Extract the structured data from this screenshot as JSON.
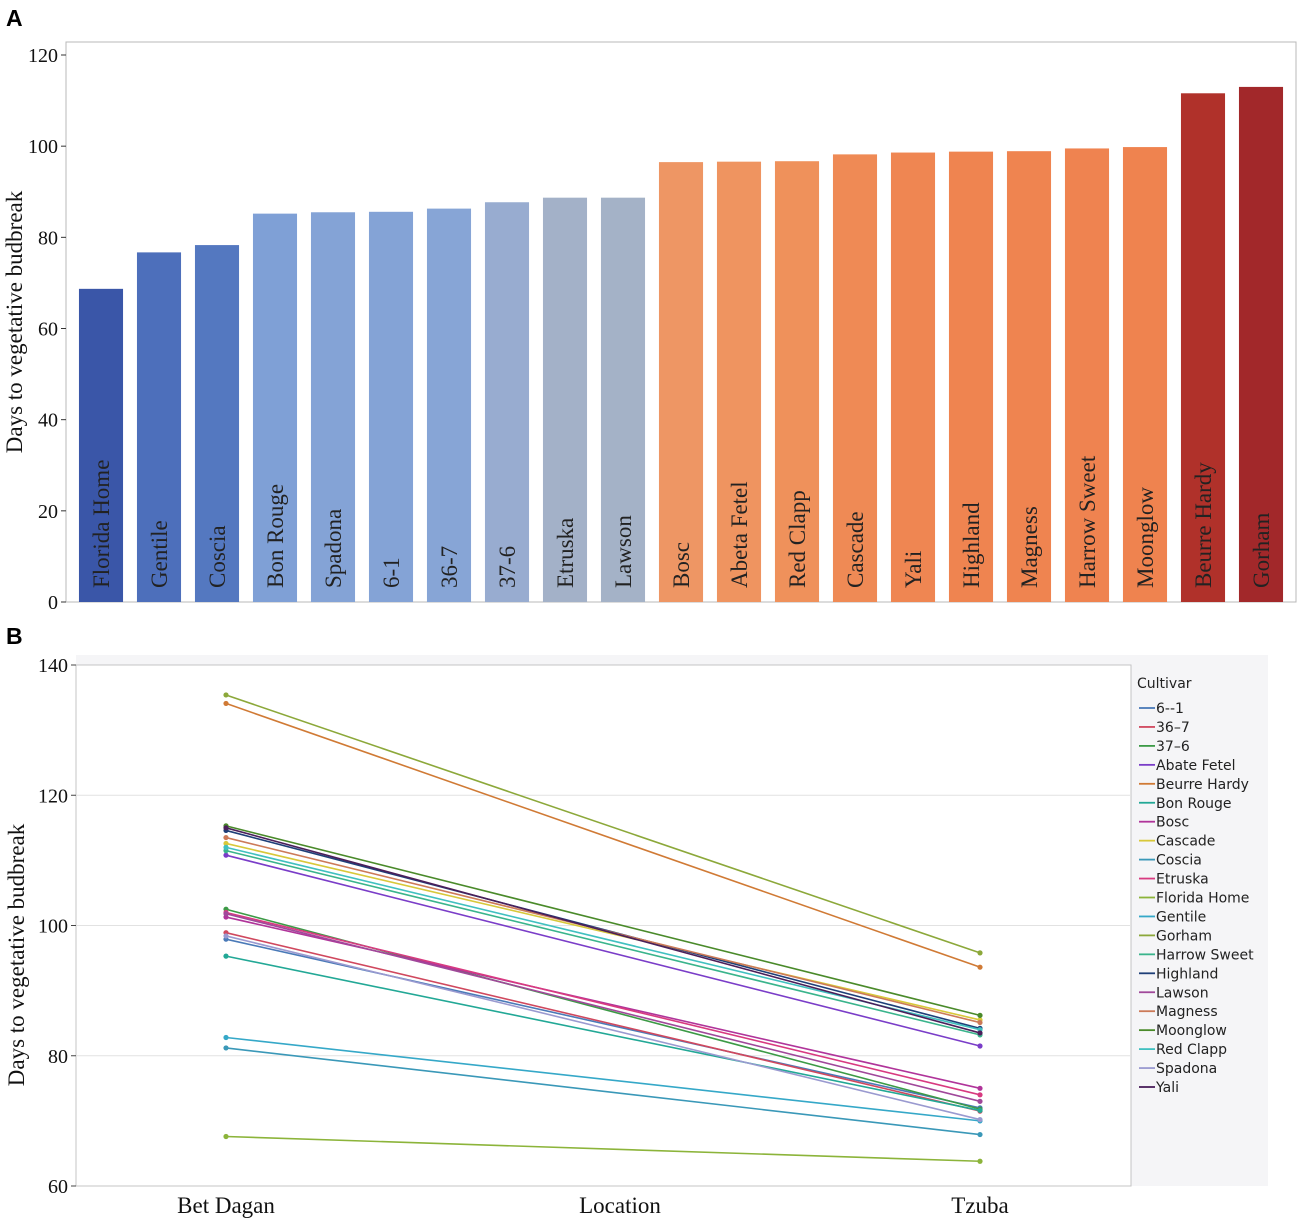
{
  "panels": {
    "a_letter": "A",
    "b_letter": "B"
  },
  "chart_data": [
    {
      "type": "bar",
      "panel": "A",
      "ylabel": "Days to vegetative budbreak",
      "ylim": [
        0,
        120
      ],
      "yticks": [
        0,
        20,
        40,
        60,
        80,
        100,
        120
      ],
      "categories": [
        "Florida Home",
        "Gentile",
        "Coscia",
        "Bon Rouge",
        "Spadona",
        "6-1",
        "36-7",
        "37-6",
        "Etruska",
        "Lawson",
        "Bosc",
        "Abeta Fetel",
        "Red Clapp",
        "Cascade",
        "Yali",
        "Highland",
        "Magness",
        "Harrow Sweet",
        "Moonglow",
        "Beurre Hardy",
        "Gorham"
      ],
      "values": [
        68.7,
        76.7,
        78.3,
        85.2,
        85.5,
        85.6,
        86.3,
        87.7,
        88.7,
        88.7,
        96.5,
        96.6,
        96.7,
        98.2,
        98.6,
        98.8,
        98.9,
        99.5,
        99.8,
        111.6,
        113.0
      ],
      "colors": [
        "#3a56a8",
        "#4d6fbb",
        "#5478c0",
        "#7fa0d6",
        "#84a3d6",
        "#84a3d6",
        "#87a5d6",
        "#98acd0",
        "#a3b1c8",
        "#a4b2c7",
        "#ee9664",
        "#ef9460",
        "#ef915b",
        "#ef8a55",
        "#ef8652",
        "#ef8450",
        "#ef8450",
        "#ef8350",
        "#ef834f",
        "#b0312a",
        "#a2282a"
      ]
    },
    {
      "type": "line",
      "panel": "B",
      "ylabel": "Days to vegetative budbreak",
      "xlabel": "Location",
      "categories": [
        "Bet Dagan",
        "Tzuba"
      ],
      "ylim": [
        60,
        140
      ],
      "yticks": [
        60,
        80,
        100,
        120,
        140
      ],
      "legend_title": "Cultivar",
      "legend_position": "right",
      "series": [
        {
          "name": "6--1",
          "color": "#4a7ab8",
          "values": [
            97.9,
            72.0
          ]
        },
        {
          "name": "36–7",
          "color": "#d0485e",
          "values": [
            98.9,
            71.5
          ]
        },
        {
          "name": "37–6",
          "color": "#3c9a46",
          "values": [
            102.5,
            71.8
          ]
        },
        {
          "name": "Abate Fetel",
          "color": "#7a3dc8",
          "values": [
            110.8,
            81.5
          ]
        },
        {
          "name": "Beurre Hardy",
          "color": "#d07a35",
          "values": [
            134.1,
            93.6
          ]
        },
        {
          "name": "Bon Rouge",
          "color": "#22a896",
          "values": [
            95.3,
            71.6
          ]
        },
        {
          "name": "Bosc",
          "color": "#b0349a",
          "values": [
            101.3,
            75.0
          ]
        },
        {
          "name": "Cascade",
          "color": "#d8c83a",
          "values": [
            112.6,
            85.5
          ]
        },
        {
          "name": "Coscia",
          "color": "#3a98b8",
          "values": [
            81.2,
            67.9
          ]
        },
        {
          "name": "Etruska",
          "color": "#d83a80",
          "values": [
            102.0,
            74.0
          ]
        },
        {
          "name": "Florida Home",
          "color": "#8cb43a",
          "values": [
            67.6,
            63.8
          ]
        },
        {
          "name": "Gentile",
          "color": "#35a8c8",
          "values": [
            82.8,
            70.0
          ]
        },
        {
          "name": "Gorham",
          "color": "#8ca83a",
          "values": [
            135.4,
            95.8
          ]
        },
        {
          "name": "Harrow Sweet",
          "color": "#3ab48c",
          "values": [
            111.5,
            83.2
          ]
        },
        {
          "name": "Highland",
          "color": "#1e3f78",
          "values": [
            114.6,
            84.2
          ]
        },
        {
          "name": "Lawson",
          "color": "#a0489a",
          "values": [
            101.8,
            73.0
          ]
        },
        {
          "name": "Magness",
          "color": "#cc7a58",
          "values": [
            113.5,
            85.1
          ]
        },
        {
          "name": "Moonglow",
          "color": "#4a8a2a",
          "values": [
            115.3,
            86.2
          ]
        },
        {
          "name": "Red Clapp",
          "color": "#40c0c0",
          "values": [
            112.0,
            84.0
          ]
        },
        {
          "name": "Spadona",
          "color": "#9a9ad0",
          "values": [
            98.4,
            70.2
          ]
        },
        {
          "name": "Yali",
          "color": "#4a1f5a",
          "values": [
            115.0,
            83.5
          ]
        }
      ]
    }
  ]
}
